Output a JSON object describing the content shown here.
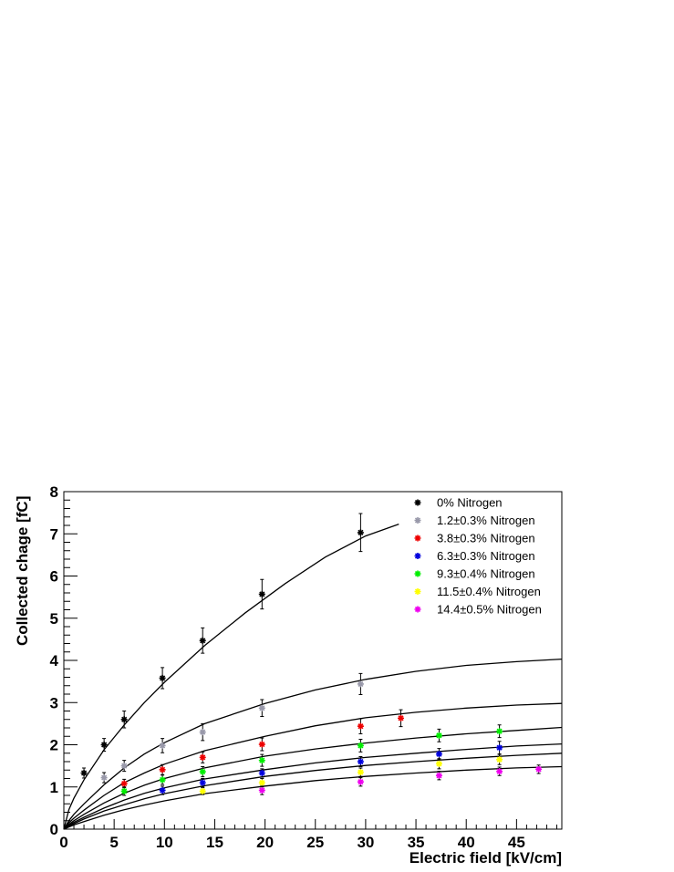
{
  "chart_data": {
    "type": "scatter",
    "title": "",
    "xlabel": "Electric field [kV/cm]",
    "ylabel": "Collected chage [fC]",
    "xlim": [
      0,
      49.5
    ],
    "ylim": [
      0,
      8
    ],
    "x_ticks": [
      "0",
      "5",
      "10",
      "15",
      "20",
      "25",
      "30",
      "35",
      "40",
      "45"
    ],
    "y_ticks": [
      "0",
      "1",
      "2",
      "3",
      "4",
      "5",
      "6",
      "7",
      "8"
    ],
    "grid": false,
    "legend_position": "top-right",
    "series": [
      {
        "name": "0% Nitrogen",
        "color": "#000000",
        "points": [
          {
            "x": 2.0,
            "y": 1.33,
            "err": 0.12
          },
          {
            "x": 4.0,
            "y": 2.0,
            "err": 0.15
          },
          {
            "x": 6.0,
            "y": 2.6,
            "err": 0.2
          },
          {
            "x": 9.8,
            "y": 3.58,
            "err": 0.25
          },
          {
            "x": 13.8,
            "y": 4.47,
            "err": 0.3
          },
          {
            "x": 19.7,
            "y": 5.57,
            "err": 0.35
          },
          {
            "x": 29.5,
            "y": 7.03,
            "err": 0.45
          }
        ],
        "fit": [
          [
            0,
            0
          ],
          [
            0.5,
            0.46
          ],
          [
            1,
            0.73
          ],
          [
            2,
            1.17
          ],
          [
            4,
            1.88
          ],
          [
            6,
            2.47
          ],
          [
            8,
            3.0
          ],
          [
            10,
            3.48
          ],
          [
            14,
            4.35
          ],
          [
            18,
            5.12
          ],
          [
            22,
            5.82
          ],
          [
            26,
            6.45
          ],
          [
            30,
            6.95
          ],
          [
            33.3,
            7.23
          ]
        ]
      },
      {
        "name": "1.2±0.3% Nitrogen",
        "color": "#9999aa",
        "points": [
          {
            "x": 4.0,
            "y": 1.22,
            "err": 0.12
          },
          {
            "x": 6.0,
            "y": 1.5,
            "err": 0.13
          },
          {
            "x": 9.8,
            "y": 1.98,
            "err": 0.17
          },
          {
            "x": 13.8,
            "y": 2.3,
            "err": 0.2
          },
          {
            "x": 19.7,
            "y": 2.87,
            "err": 0.2
          },
          {
            "x": 29.5,
            "y": 3.44,
            "err": 0.25
          }
        ],
        "fit": [
          [
            0,
            0
          ],
          [
            0.5,
            0.2
          ],
          [
            1,
            0.35
          ],
          [
            2,
            0.6
          ],
          [
            4,
            1.05
          ],
          [
            6,
            1.45
          ],
          [
            8,
            1.78
          ],
          [
            10,
            2.05
          ],
          [
            14,
            2.5
          ],
          [
            20,
            2.98
          ],
          [
            25,
            3.3
          ],
          [
            30,
            3.55
          ],
          [
            35,
            3.74
          ],
          [
            40,
            3.88
          ],
          [
            45,
            3.97
          ],
          [
            49.5,
            4.03
          ]
        ]
      },
      {
        "name": "3.8±0.3% Nitrogen",
        "color": "#ee0000",
        "points": [
          {
            "x": 6.0,
            "y": 1.08,
            "err": 0.1
          },
          {
            "x": 9.8,
            "y": 1.41,
            "err": 0.12
          },
          {
            "x": 13.8,
            "y": 1.7,
            "err": 0.13
          },
          {
            "x": 19.7,
            "y": 2.01,
            "err": 0.15
          },
          {
            "x": 29.5,
            "y": 2.44,
            "err": 0.18
          },
          {
            "x": 33.5,
            "y": 2.63,
            "err": 0.2
          }
        ],
        "fit": [
          [
            0,
            0
          ],
          [
            0.5,
            0.15
          ],
          [
            1,
            0.26
          ],
          [
            2,
            0.45
          ],
          [
            4,
            0.8
          ],
          [
            6,
            1.1
          ],
          [
            8,
            1.33
          ],
          [
            10,
            1.54
          ],
          [
            14,
            1.86
          ],
          [
            20,
            2.2
          ],
          [
            25,
            2.45
          ],
          [
            30,
            2.64
          ],
          [
            35,
            2.77
          ],
          [
            40,
            2.87
          ],
          [
            45,
            2.94
          ],
          [
            49.5,
            2.98
          ]
        ]
      },
      {
        "name": "6.3±0.3% Nitrogen",
        "color": "#0000dd",
        "points": [
          {
            "x": 9.8,
            "y": 0.92,
            "err": 0.1
          },
          {
            "x": 13.8,
            "y": 1.1,
            "err": 0.1
          },
          {
            "x": 19.7,
            "y": 1.33,
            "err": 0.1
          },
          {
            "x": 29.5,
            "y": 1.6,
            "err": 0.12
          },
          {
            "x": 37.3,
            "y": 1.78,
            "err": 0.13
          },
          {
            "x": 43.3,
            "y": 1.93,
            "err": 0.15
          }
        ],
        "fit": [
          [
            0,
            0
          ],
          [
            0.5,
            0.09
          ],
          [
            1,
            0.16
          ],
          [
            2,
            0.28
          ],
          [
            4,
            0.5
          ],
          [
            6,
            0.69
          ],
          [
            8,
            0.85
          ],
          [
            10,
            0.98
          ],
          [
            14,
            1.19
          ],
          [
            20,
            1.41
          ],
          [
            25,
            1.57
          ],
          [
            30,
            1.7
          ],
          [
            35,
            1.8
          ],
          [
            40,
            1.89
          ],
          [
            45,
            1.97
          ],
          [
            49.5,
            2.02
          ]
        ]
      },
      {
        "name": "9.3±0.4% Nitrogen",
        "color": "#00ee00",
        "points": [
          {
            "x": 6.0,
            "y": 0.9,
            "err": 0.1
          },
          {
            "x": 9.8,
            "y": 1.17,
            "err": 0.11
          },
          {
            "x": 13.8,
            "y": 1.36,
            "err": 0.12
          },
          {
            "x": 19.7,
            "y": 1.63,
            "err": 0.14
          },
          {
            "x": 29.5,
            "y": 1.98,
            "err": 0.15
          },
          {
            "x": 37.3,
            "y": 2.22,
            "err": 0.15
          },
          {
            "x": 43.3,
            "y": 2.32,
            "err": 0.15
          }
        ],
        "fit": [
          [
            0,
            0
          ],
          [
            0.5,
            0.11
          ],
          [
            1,
            0.2
          ],
          [
            2,
            0.35
          ],
          [
            4,
            0.62
          ],
          [
            6,
            0.85
          ],
          [
            8,
            1.04
          ],
          [
            10,
            1.2
          ],
          [
            14,
            1.45
          ],
          [
            20,
            1.73
          ],
          [
            25,
            1.9
          ],
          [
            30,
            2.04
          ],
          [
            35,
            2.16
          ],
          [
            40,
            2.26
          ],
          [
            45,
            2.34
          ],
          [
            49.5,
            2.41
          ]
        ]
      },
      {
        "name": "11.5±0.4% Nitrogen",
        "color": "#ffff00",
        "points": [
          {
            "x": 13.8,
            "y": 0.9,
            "err": 0.08
          },
          {
            "x": 19.7,
            "y": 1.1,
            "err": 0.1
          },
          {
            "x": 29.5,
            "y": 1.35,
            "err": 0.1
          },
          {
            "x": 37.3,
            "y": 1.55,
            "err": 0.12
          },
          {
            "x": 43.3,
            "y": 1.65,
            "err": 0.12
          }
        ],
        "fit": [
          [
            0,
            0
          ],
          [
            0.5,
            0.07
          ],
          [
            1,
            0.13
          ],
          [
            2,
            0.24
          ],
          [
            4,
            0.43
          ],
          [
            6,
            0.58
          ],
          [
            8,
            0.72
          ],
          [
            10,
            0.84
          ],
          [
            14,
            1.03
          ],
          [
            20,
            1.25
          ],
          [
            25,
            1.39
          ],
          [
            30,
            1.51
          ],
          [
            35,
            1.6
          ],
          [
            40,
            1.68
          ],
          [
            45,
            1.75
          ],
          [
            49.5,
            1.8
          ]
        ]
      },
      {
        "name": "14.4±0.5% Nitrogen",
        "color": "#ee00ee",
        "points": [
          {
            "x": 19.7,
            "y": 0.92,
            "err": 0.1
          },
          {
            "x": 29.5,
            "y": 1.12,
            "err": 0.1
          },
          {
            "x": 37.3,
            "y": 1.27,
            "err": 0.1
          },
          {
            "x": 43.3,
            "y": 1.37,
            "err": 0.1
          },
          {
            "x": 47.2,
            "y": 1.42,
            "err": 0.1
          }
        ],
        "fit": [
          [
            0,
            0
          ],
          [
            0.5,
            0.05
          ],
          [
            1,
            0.1
          ],
          [
            2,
            0.18
          ],
          [
            4,
            0.33
          ],
          [
            6,
            0.46
          ],
          [
            8,
            0.57
          ],
          [
            10,
            0.67
          ],
          [
            14,
            0.84
          ],
          [
            20,
            1.02
          ],
          [
            25,
            1.15
          ],
          [
            30,
            1.25
          ],
          [
            35,
            1.33
          ],
          [
            40,
            1.4
          ],
          [
            45,
            1.45
          ],
          [
            49.5,
            1.48
          ]
        ]
      }
    ]
  }
}
